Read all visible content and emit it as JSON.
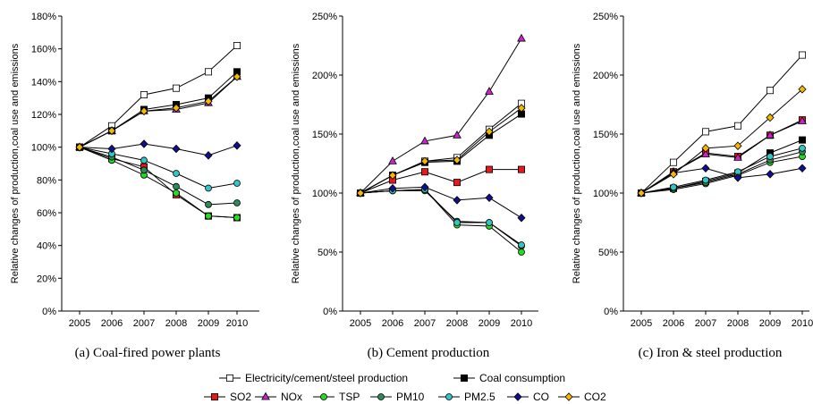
{
  "chart_data": [
    {
      "type": "line",
      "caption": "(a) Coal-fired power plants",
      "ylabel": "Relative changes of production,coal use and emissions",
      "x": [
        "2005",
        "2006",
        "2007",
        "2008",
        "2009",
        "2010"
      ],
      "ylim": [
        0,
        180
      ],
      "yticks": [
        "0%",
        "20%",
        "40%",
        "60%",
        "80%",
        "100%",
        "120%",
        "140%",
        "160%",
        "180%"
      ],
      "series": [
        {
          "key": "production",
          "values": [
            100,
            113,
            132,
            136,
            146,
            162
          ]
        },
        {
          "key": "coal",
          "values": [
            100,
            110,
            123,
            126,
            130,
            146
          ]
        },
        {
          "key": "so2",
          "values": [
            100,
            93,
            88,
            71,
            58,
            57
          ]
        },
        {
          "key": "nox",
          "values": [
            100,
            110,
            122,
            123,
            127,
            143
          ]
        },
        {
          "key": "tsp",
          "values": [
            100,
            92,
            83,
            72,
            58,
            57
          ]
        },
        {
          "key": "pm10",
          "values": [
            100,
            94,
            86,
            76,
            65,
            66
          ]
        },
        {
          "key": "pm25",
          "values": [
            100,
            96,
            92,
            84,
            75,
            78
          ]
        },
        {
          "key": "co",
          "values": [
            100,
            99,
            102,
            99,
            95,
            101
          ]
        },
        {
          "key": "co2",
          "values": [
            100,
            110,
            122,
            124,
            128,
            143
          ]
        }
      ]
    },
    {
      "type": "line",
      "caption": "(b) Cement production",
      "ylabel": "Relative changes of production,coal use and emissions",
      "x": [
        "2005",
        "2006",
        "2007",
        "2008",
        "2009",
        "2010"
      ],
      "ylim": [
        0,
        250
      ],
      "yticks": [
        "0%",
        "50%",
        "100%",
        "150%",
        "200%",
        "250%"
      ],
      "series": [
        {
          "key": "production",
          "values": [
            100,
            115,
            127,
            130,
            154,
            176
          ]
        },
        {
          "key": "coal",
          "values": [
            100,
            115,
            126,
            127,
            149,
            167
          ]
        },
        {
          "key": "so2",
          "values": [
            100,
            111,
            118,
            109,
            120,
            120
          ]
        },
        {
          "key": "nox",
          "values": [
            100,
            127,
            144,
            149,
            186,
            231
          ]
        },
        {
          "key": "tsp",
          "values": [
            100,
            102,
            103,
            73,
            72,
            50
          ]
        },
        {
          "key": "pm10",
          "values": [
            100,
            102,
            102,
            76,
            75,
            55
          ]
        },
        {
          "key": "pm25",
          "values": [
            100,
            102,
            103,
            75,
            75,
            56
          ]
        },
        {
          "key": "co",
          "values": [
            100,
            104,
            105,
            94,
            96,
            79
          ]
        },
        {
          "key": "co2",
          "values": [
            100,
            115,
            127,
            128,
            152,
            172
          ]
        }
      ]
    },
    {
      "type": "line",
      "caption": "(c) Iron & steel production",
      "ylabel": "Relative changes of production,coal use and emissions",
      "x": [
        "2005",
        "2006",
        "2007",
        "2008",
        "2009",
        "2010"
      ],
      "ylim": [
        0,
        250
      ],
      "yticks": [
        "0%",
        "50%",
        "100%",
        "150%",
        "200%",
        "250%"
      ],
      "series": [
        {
          "key": "production",
          "values": [
            100,
            126,
            152,
            157,
            187,
            217
          ]
        },
        {
          "key": "coal",
          "values": [
            100,
            104,
            110,
            117,
            134,
            145
          ]
        },
        {
          "key": "so2",
          "values": [
            100,
            118,
            134,
            131,
            149,
            162
          ]
        },
        {
          "key": "nox",
          "values": [
            100,
            118,
            133,
            130,
            149,
            161
          ]
        },
        {
          "key": "tsp",
          "values": [
            100,
            103,
            108,
            115,
            126,
            131
          ]
        },
        {
          "key": "pm10",
          "values": [
            100,
            104,
            109,
            116,
            128,
            135
          ]
        },
        {
          "key": "pm25",
          "values": [
            100,
            105,
            111,
            118,
            131,
            138
          ]
        },
        {
          "key": "co",
          "values": [
            100,
            117,
            121,
            113,
            116,
            121
          ]
        },
        {
          "key": "co2",
          "values": [
            100,
            116,
            138,
            140,
            164,
            188
          ]
        }
      ]
    }
  ],
  "legend": {
    "row1": [
      {
        "key": "production",
        "label": "Electricity/cement/steel production"
      },
      {
        "key": "coal",
        "label": "Coal consumption"
      }
    ],
    "row2": [
      {
        "key": "so2",
        "label": "SO2"
      },
      {
        "key": "nox",
        "label": "NOx"
      },
      {
        "key": "tsp",
        "label": "TSP"
      },
      {
        "key": "pm10",
        "label": "PM10"
      },
      {
        "key": "pm25",
        "label": "PM2.5"
      },
      {
        "key": "co",
        "label": "CO"
      },
      {
        "key": "co2",
        "label": "CO2"
      }
    ]
  },
  "series_styles": {
    "production": {
      "marker": "square",
      "fill": "#ffffff"
    },
    "coal": {
      "marker": "square",
      "fill": "#000000"
    },
    "so2": {
      "marker": "square",
      "fill": "#e8191b"
    },
    "nox": {
      "marker": "triangle",
      "fill": "#cc22cc"
    },
    "tsp": {
      "marker": "circle",
      "fill": "#22dd22"
    },
    "pm10": {
      "marker": "circle",
      "fill": "#2e8b57"
    },
    "pm25": {
      "marker": "circle",
      "fill": "#33c4c4"
    },
    "co": {
      "marker": "diamond",
      "fill": "#10108f"
    },
    "co2": {
      "marker": "diamond",
      "fill": "#f5b800"
    }
  }
}
